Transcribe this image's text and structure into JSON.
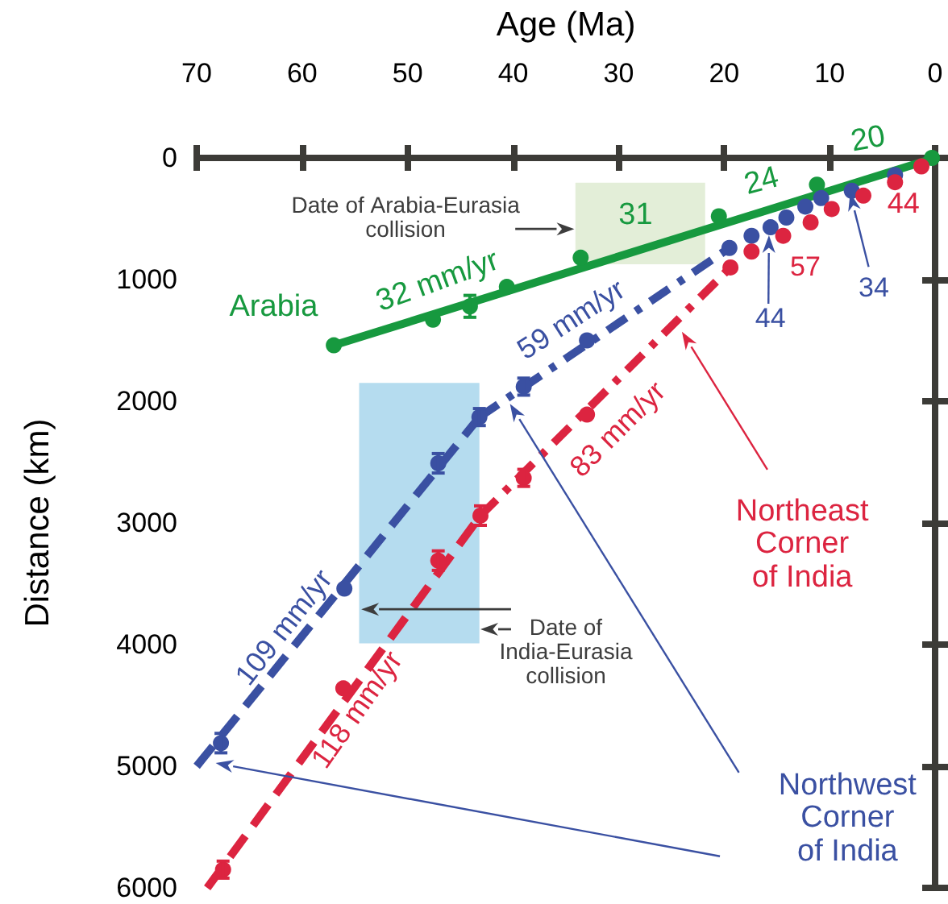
{
  "chart_data": {
    "type": "scatter",
    "xlabel": "Age (Ma)",
    "ylabel": "Distance (km)",
    "xlim": [
      70,
      0
    ],
    "ylim": [
      6000,
      0
    ],
    "xticks": [
      70,
      60,
      50,
      40,
      30,
      20,
      10,
      0
    ],
    "yticks": [
      0,
      1000,
      2000,
      3000,
      4000,
      5000,
      6000
    ],
    "grid": false,
    "marker": "circle",
    "series": [
      {
        "color": "#17993f",
        "x": [
          57,
          47.6,
          44.1,
          40.6,
          33.6,
          20.5,
          11.2,
          0.3
        ],
        "values": [
          1540,
          1330,
          1220,
          1060,
          820,
          480,
          220,
          0
        ],
        "errors": [
          null,
          null,
          90,
          null,
          null,
          null,
          null,
          null
        ]
      },
      {
        "type": "line",
        "color": "#17993f",
        "x": [
          57,
          0
        ],
        "values": [
          1540,
          0
        ],
        "line_style": "solid",
        "marker": "none"
      },
      {
        "color": "#3a50a2",
        "x": [
          67.7,
          56,
          47.1,
          43.2,
          39,
          33,
          19.5,
          17.4,
          15.6,
          14.1,
          12.3,
          10.8,
          7.9,
          3.8
        ],
        "values": [
          4810,
          3540,
          2510,
          2130,
          1880,
          1500,
          740,
          640,
          570,
          490,
          400,
          330,
          270,
          140
        ],
        "errors": [
          80,
          null,
          80,
          70,
          70,
          null,
          null,
          null,
          null,
          null,
          null,
          null,
          null,
          null
        ]
      },
      {
        "type": "line",
        "color": "#3a50a2",
        "x": [
          70,
          43.2
        ],
        "values": [
          5000,
          2130
        ],
        "line_style": "dashed",
        "marker": "none"
      },
      {
        "type": "line",
        "color": "#3a50a2",
        "x": [
          43.2,
          19.5
        ],
        "values": [
          2130,
          740
        ],
        "line_style": "dashdot",
        "marker": "none"
      },
      {
        "color": "#dc2440",
        "x": [
          67.5,
          56.1,
          47.1,
          43.1,
          39,
          33,
          19.4,
          17.4,
          14.4,
          11.8,
          9.8,
          6.8,
          3.8,
          1.3
        ],
        "values": [
          5850,
          4360,
          3310,
          2940,
          2630,
          2110,
          900,
          770,
          640,
          530,
          420,
          310,
          200,
          70
        ],
        "errors": [
          70,
          null,
          80,
          80,
          70,
          null,
          null,
          null,
          null,
          null,
          null,
          null,
          null,
          null
        ]
      },
      {
        "type": "line",
        "color": "#dc2440",
        "x": [
          69,
          43.1
        ],
        "values": [
          6000,
          2940
        ],
        "line_style": "dashed",
        "marker": "none"
      },
      {
        "type": "line",
        "color": "#dc2440",
        "x": [
          43.1,
          19.4
        ],
        "values": [
          2940,
          900
        ],
        "line_style": "dashdot",
        "marker": "none"
      }
    ],
    "bands": [
      {
        "axis": "x",
        "from": 34.1,
        "to": 21.8,
        "label": "Date of Arabia-Eurasia collision",
        "color": "#e3eed8"
      },
      {
        "axis": "x",
        "from": 54.6,
        "to": 43.2,
        "label": "Date of India-Eurasia collision",
        "color": "#b5dcef"
      }
    ],
    "annotations": [
      "Arabia",
      "32 mm/yr",
      "31",
      "24",
      "20",
      "59 mm/yr",
      "109 mm/yr",
      "44",
      "34",
      "Northwest Corner of India",
      "83 mm/yr",
      "118 mm/yr",
      "57",
      "44",
      "Northeast Corner of India"
    ]
  }
}
